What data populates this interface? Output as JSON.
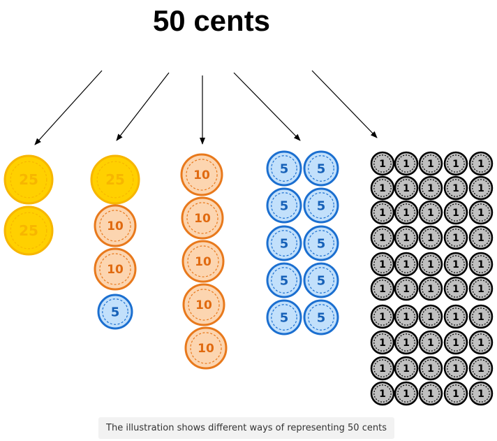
{
  "title": "50 cents",
  "caption": "The illustration shows different ways of representing 50 cents",
  "coin_types": {
    "25": {
      "label": "25",
      "fill": "#ffd000",
      "stroke": "#f7b600",
      "text": "#f7b600",
      "icon": "quarter-coin"
    },
    "10": {
      "label": "10",
      "fill": "#fcd5b0",
      "stroke": "#e8791c",
      "text": "#e06a10",
      "icon": "dime-coin"
    },
    "5": {
      "label": "5",
      "fill": "#c2e0fb",
      "stroke": "#1b6fd0",
      "text": "#1761b8",
      "icon": "nickel-coin"
    },
    "1": {
      "label": "1",
      "fill": "#c0c0c0",
      "stroke": "#000000",
      "text": "#000000",
      "icon": "penny-coin"
    }
  },
  "groups": [
    {
      "name": "two-quarters",
      "coins": [
        "25",
        "25"
      ]
    },
    {
      "name": "quarter-two-dimes-nickel",
      "coins": [
        "25",
        "10",
        "10",
        "5"
      ]
    },
    {
      "name": "five-dimes",
      "coins": [
        "10",
        "10",
        "10",
        "10",
        "10"
      ]
    },
    {
      "name": "ten-nickels",
      "coins": [
        "5",
        "5",
        "5",
        "5",
        "5",
        "5",
        "5",
        "5",
        "5",
        "5"
      ]
    },
    {
      "name": "fifty-pennies",
      "coins": [
        "1",
        "1",
        "1",
        "1",
        "1",
        "1",
        "1",
        "1",
        "1",
        "1",
        "1",
        "1",
        "1",
        "1",
        "1",
        "1",
        "1",
        "1",
        "1",
        "1",
        "1",
        "1",
        "1",
        "1",
        "1",
        "1",
        "1",
        "1",
        "1",
        "1",
        "1",
        "1",
        "1",
        "1",
        "1",
        "1",
        "1",
        "1",
        "1",
        "1",
        "1",
        "1",
        "1",
        "1",
        "1",
        "1",
        "1",
        "1",
        "1",
        "1"
      ]
    }
  ]
}
